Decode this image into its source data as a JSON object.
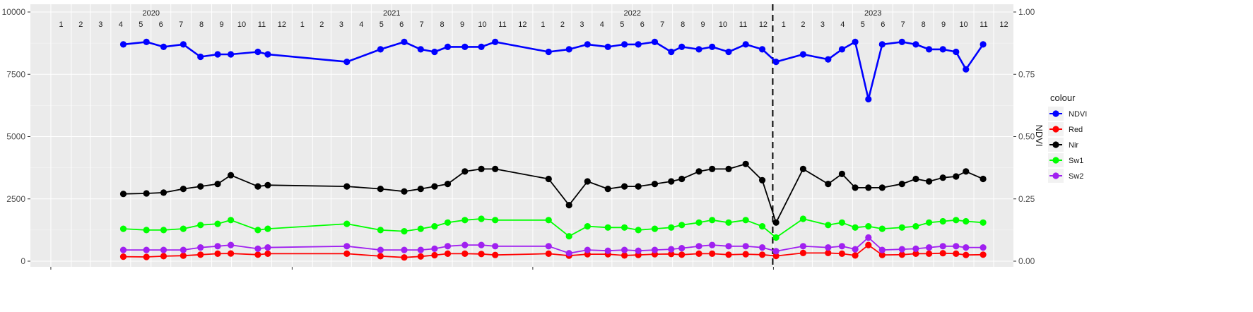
{
  "chart_data": {
    "type": "line",
    "title": "",
    "xlabel": "",
    "ylabel": "",
    "y2label": "NDVI",
    "ylim": [
      0,
      10000
    ],
    "y2lim": [
      0,
      1
    ],
    "yticks": [
      0,
      2500,
      5000,
      7500,
      10000
    ],
    "yticklabels": [
      "0",
      "2500",
      "5000",
      "7500",
      "10000"
    ],
    "y2ticks": [
      0,
      0.25,
      0.5,
      0.75,
      1
    ],
    "y2ticklabels": [
      "0.00",
      "0.25",
      "0.50",
      "0.75",
      "1.00"
    ],
    "xlim": [
      "2019-12-01",
      "2023-12-31"
    ],
    "vline": "2022-12-31",
    "grid": true,
    "legend_placement": "right",
    "legend_title": "colour",
    "years": [
      {
        "label": "2020",
        "date": "2020-06-01"
      },
      {
        "label": "2021",
        "date": "2021-06-01"
      },
      {
        "label": "2022",
        "date": "2022-06-01"
      },
      {
        "label": "2023",
        "date": "2023-06-01"
      }
    ],
    "month_labels": [
      "1",
      "2",
      "3",
      "4",
      "5",
      "6",
      "7",
      "8",
      "9",
      "10",
      "11",
      "12"
    ],
    "dates": [
      "2020-04-20",
      "2020-05-25",
      "2020-06-20",
      "2020-07-20",
      "2020-08-15",
      "2020-09-10",
      "2020-09-30",
      "2020-11-10",
      "2020-11-25",
      "2021-03-25",
      "2021-05-15",
      "2021-06-20",
      "2021-07-15",
      "2021-08-05",
      "2021-08-25",
      "2021-09-20",
      "2021-10-15",
      "2021-11-05",
      "2022-01-25",
      "2022-02-25",
      "2022-03-25",
      "2022-04-25",
      "2022-05-20",
      "2022-06-10",
      "2022-07-05",
      "2022-07-30",
      "2022-08-15",
      "2022-09-10",
      "2022-09-30",
      "2022-10-25",
      "2022-11-20",
      "2022-12-15",
      "2023-01-05",
      "2023-02-15",
      "2023-03-25",
      "2023-04-15",
      "2023-05-05",
      "2023-05-25",
      "2023-06-15",
      "2023-07-15",
      "2023-08-05",
      "2023-08-25",
      "2023-09-15",
      "2023-10-05",
      "2023-10-20",
      "2023-11-15"
    ],
    "series": [
      {
        "name": "NDVI",
        "color": "#0000ff",
        "axis": "right",
        "values": [
          0.87,
          0.88,
          0.86,
          0.87,
          0.82,
          0.83,
          0.83,
          0.84,
          0.83,
          0.8,
          0.85,
          0.88,
          0.85,
          0.84,
          0.86,
          0.86,
          0.86,
          0.88,
          0.84,
          0.85,
          0.87,
          0.86,
          0.87,
          0.87,
          0.88,
          0.84,
          0.86,
          0.85,
          0.86,
          0.84,
          0.87,
          0.85,
          0.8,
          0.83,
          0.81,
          0.85,
          0.88,
          0.65,
          0.87,
          0.88,
          0.87,
          0.85,
          0.85,
          0.84,
          0.77,
          0.87
        ]
      },
      {
        "name": "Red",
        "color": "#ff0000",
        "axis": "left",
        "values": [
          180,
          170,
          200,
          220,
          260,
          300,
          310,
          260,
          300,
          300,
          200,
          150,
          190,
          240,
          300,
          300,
          290,
          250,
          300,
          220,
          280,
          280,
          230,
          250,
          280,
          290,
          260,
          300,
          300,
          260,
          280,
          260,
          210,
          330,
          330,
          300,
          230,
          650,
          250,
          260,
          300,
          300,
          320,
          300,
          250,
          260
        ]
      },
      {
        "name": "Nir",
        "color": "#000000",
        "axis": "left",
        "values": [
          2700,
          2720,
          2750,
          2900,
          3000,
          3100,
          3450,
          3000,
          3050,
          3000,
          2900,
          2800,
          2900,
          3000,
          3100,
          3600,
          3700,
          3700,
          3300,
          2250,
          3200,
          2900,
          3000,
          3000,
          3100,
          3200,
          3300,
          3600,
          3700,
          3700,
          3900,
          3250,
          1550,
          3700,
          3100,
          3500,
          2950,
          2950,
          2950,
          3100,
          3300,
          3200,
          3350,
          3400,
          3600,
          3300
        ]
      },
      {
        "name": "Sw1",
        "color": "#00ff00",
        "axis": "left",
        "values": [
          1300,
          1250,
          1250,
          1300,
          1450,
          1500,
          1650,
          1250,
          1300,
          1500,
          1250,
          1200,
          1300,
          1400,
          1550,
          1650,
          1700,
          1650,
          1650,
          1000,
          1400,
          1350,
          1350,
          1250,
          1300,
          1350,
          1450,
          1550,
          1650,
          1550,
          1650,
          1400,
          950,
          1700,
          1450,
          1550,
          1350,
          1400,
          1300,
          1350,
          1400,
          1550,
          1600,
          1650,
          1600,
          1550
        ]
      },
      {
        "name": "Sw2",
        "color": "#a020f0",
        "axis": "left",
        "values": [
          450,
          450,
          450,
          450,
          550,
          600,
          650,
          500,
          550,
          600,
          450,
          450,
          450,
          500,
          600,
          650,
          650,
          600,
          600,
          320,
          450,
          420,
          450,
          420,
          450,
          480,
          520,
          600,
          650,
          600,
          600,
          550,
          400,
          600,
          550,
          600,
          480,
          950,
          450,
          480,
          500,
          550,
          600,
          600,
          550,
          550
        ]
      }
    ]
  }
}
